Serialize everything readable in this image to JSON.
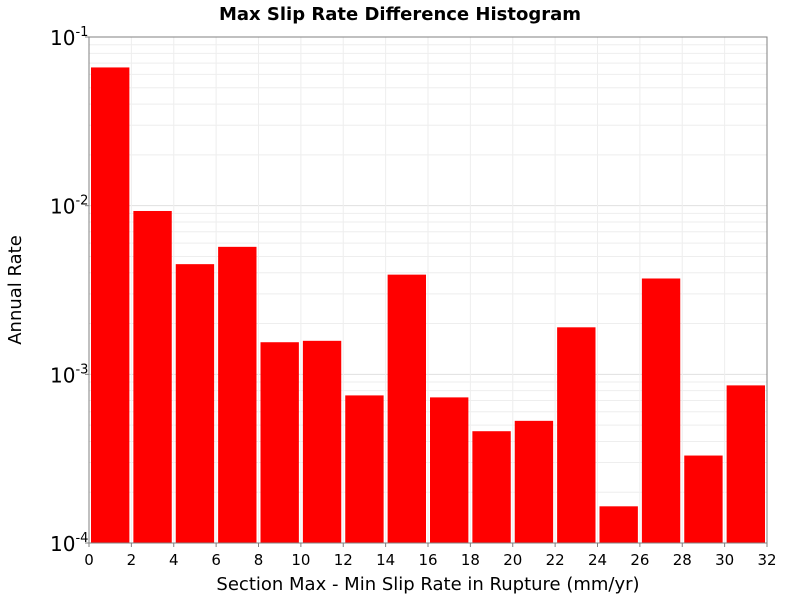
{
  "chart_data": {
    "type": "bar",
    "title": "Max Slip Rate Difference Histogram",
    "xlabel": "Section Max - Min Slip Rate in Rupture (mm/yr)",
    "ylabel": "Annual Rate",
    "xlim": [
      0,
      32
    ],
    "ylim": [
      0.0001,
      0.1
    ],
    "yscale": "log",
    "grid": true,
    "legend": "none",
    "bar_color": "#ff0000",
    "bin_width": 2,
    "x": [
      1,
      3,
      5,
      7,
      9,
      11,
      13,
      15,
      17,
      19,
      21,
      23,
      25,
      27,
      29,
      31
    ],
    "values": [
      0.066,
      0.0093,
      0.0045,
      0.0057,
      0.00155,
      0.00158,
      0.00075,
      0.0039,
      0.00073,
      0.00046,
      0.00053,
      0.0019,
      0.000165,
      0.0037,
      0.00033,
      0.00086
    ],
    "xticks": [
      "0",
      "2",
      "4",
      "6",
      "8",
      "10",
      "12",
      "14",
      "16",
      "18",
      "20",
      "22",
      "24",
      "26",
      "28",
      "30",
      "32"
    ],
    "yticks": [
      {
        "base": "10",
        "exp": "-1"
      },
      {
        "base": "10",
        "exp": "-2"
      },
      {
        "base": "10",
        "exp": "-3"
      },
      {
        "base": "10",
        "exp": "-4"
      }
    ]
  }
}
